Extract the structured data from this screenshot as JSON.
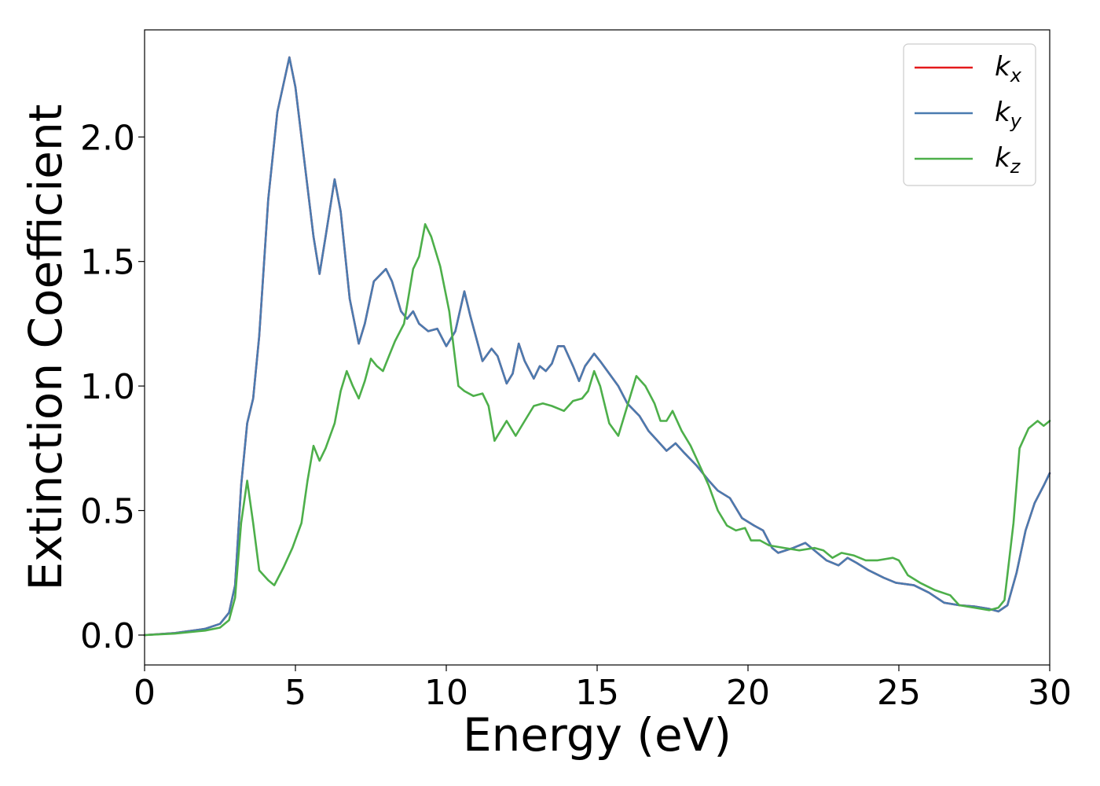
{
  "chart_data": {
    "type": "line",
    "title": "",
    "xlabel": "Energy (eV)",
    "ylabel": "Extinction Coefficient",
    "xlim": [
      0,
      30
    ],
    "ylim": [
      -0.12,
      2.43
    ],
    "xticks": [
      0,
      5,
      10,
      15,
      20,
      25,
      30
    ],
    "xtick_labels": [
      "0",
      "5",
      "10",
      "15",
      "20",
      "25",
      "30"
    ],
    "yticks": [
      0.0,
      0.5,
      1.0,
      1.5,
      2.0
    ],
    "ytick_labels": [
      "0.0",
      "0.5",
      "1.0",
      "1.5",
      "2.0"
    ],
    "grid": false,
    "legend_position": "top-right",
    "series": [
      {
        "name": "k",
        "subscript": "x",
        "color": "#e41a1c",
        "points": [
          [
            0,
            0
          ],
          [
            1,
            0.008
          ],
          [
            2,
            0.025
          ],
          [
            2.5,
            0.045
          ],
          [
            2.8,
            0.09
          ],
          [
            3,
            0.2
          ],
          [
            3.2,
            0.6
          ],
          [
            3.4,
            0.85
          ],
          [
            3.6,
            0.95
          ],
          [
            3.8,
            1.2
          ],
          [
            4.1,
            1.75
          ],
          [
            4.4,
            2.1
          ],
          [
            4.8,
            2.32
          ],
          [
            5.0,
            2.2
          ],
          [
            5.3,
            1.9
          ],
          [
            5.6,
            1.6
          ],
          [
            5.8,
            1.45
          ],
          [
            6.0,
            1.6
          ],
          [
            6.3,
            1.83
          ],
          [
            6.5,
            1.7
          ],
          [
            6.8,
            1.35
          ],
          [
            7.1,
            1.17
          ],
          [
            7.3,
            1.25
          ],
          [
            7.6,
            1.42
          ],
          [
            8.0,
            1.47
          ],
          [
            8.2,
            1.42
          ],
          [
            8.5,
            1.3
          ],
          [
            8.7,
            1.27
          ],
          [
            8.9,
            1.3
          ],
          [
            9.1,
            1.25
          ],
          [
            9.4,
            1.22
          ],
          [
            9.7,
            1.23
          ],
          [
            10.0,
            1.16
          ],
          [
            10.3,
            1.22
          ],
          [
            10.6,
            1.38
          ],
          [
            10.8,
            1.28
          ],
          [
            11.2,
            1.1
          ],
          [
            11.5,
            1.15
          ],
          [
            11.7,
            1.12
          ],
          [
            12.0,
            1.01
          ],
          [
            12.2,
            1.05
          ],
          [
            12.4,
            1.17
          ],
          [
            12.6,
            1.1
          ],
          [
            12.9,
            1.03
          ],
          [
            13.1,
            1.08
          ],
          [
            13.3,
            1.06
          ],
          [
            13.5,
            1.09
          ],
          [
            13.7,
            1.16
          ],
          [
            13.9,
            1.16
          ],
          [
            14.2,
            1.08
          ],
          [
            14.4,
            1.02
          ],
          [
            14.6,
            1.08
          ],
          [
            14.9,
            1.13
          ],
          [
            15.1,
            1.1
          ],
          [
            15.4,
            1.05
          ],
          [
            15.7,
            1.0
          ],
          [
            16.0,
            0.93
          ],
          [
            16.4,
            0.88
          ],
          [
            16.7,
            0.82
          ],
          [
            17.0,
            0.78
          ],
          [
            17.3,
            0.74
          ],
          [
            17.6,
            0.77
          ],
          [
            17.9,
            0.73
          ],
          [
            18.3,
            0.68
          ],
          [
            18.7,
            0.62
          ],
          [
            19.0,
            0.58
          ],
          [
            19.4,
            0.55
          ],
          [
            19.8,
            0.47
          ],
          [
            20.2,
            0.44
          ],
          [
            20.5,
            0.42
          ],
          [
            20.8,
            0.35
          ],
          [
            21.0,
            0.33
          ],
          [
            21.5,
            0.35
          ],
          [
            21.9,
            0.37
          ],
          [
            22.2,
            0.34
          ],
          [
            22.6,
            0.3
          ],
          [
            23.0,
            0.28
          ],
          [
            23.3,
            0.31
          ],
          [
            23.6,
            0.29
          ],
          [
            24.0,
            0.26
          ],
          [
            24.5,
            0.23
          ],
          [
            24.9,
            0.21
          ],
          [
            25.5,
            0.2
          ],
          [
            26.0,
            0.17
          ],
          [
            26.5,
            0.13
          ],
          [
            27.0,
            0.12
          ],
          [
            27.5,
            0.115
          ],
          [
            28.0,
            0.105
          ],
          [
            28.3,
            0.095
          ],
          [
            28.6,
            0.12
          ],
          [
            28.9,
            0.25
          ],
          [
            29.2,
            0.42
          ],
          [
            29.5,
            0.53
          ],
          [
            29.8,
            0.6
          ],
          [
            30,
            0.65
          ]
        ]
      },
      {
        "name": "k",
        "subscript": "y",
        "color": "#4a7bb0",
        "points": [
          [
            0,
            0
          ],
          [
            1,
            0.008
          ],
          [
            2,
            0.025
          ],
          [
            2.5,
            0.045
          ],
          [
            2.8,
            0.09
          ],
          [
            3,
            0.2
          ],
          [
            3.2,
            0.6
          ],
          [
            3.4,
            0.85
          ],
          [
            3.6,
            0.95
          ],
          [
            3.8,
            1.2
          ],
          [
            4.1,
            1.75
          ],
          [
            4.4,
            2.1
          ],
          [
            4.8,
            2.32
          ],
          [
            5.0,
            2.2
          ],
          [
            5.3,
            1.9
          ],
          [
            5.6,
            1.6
          ],
          [
            5.8,
            1.45
          ],
          [
            6.0,
            1.6
          ],
          [
            6.3,
            1.83
          ],
          [
            6.5,
            1.7
          ],
          [
            6.8,
            1.35
          ],
          [
            7.1,
            1.17
          ],
          [
            7.3,
            1.25
          ],
          [
            7.6,
            1.42
          ],
          [
            8.0,
            1.47
          ],
          [
            8.2,
            1.42
          ],
          [
            8.5,
            1.3
          ],
          [
            8.7,
            1.27
          ],
          [
            8.9,
            1.3
          ],
          [
            9.1,
            1.25
          ],
          [
            9.4,
            1.22
          ],
          [
            9.7,
            1.23
          ],
          [
            10.0,
            1.16
          ],
          [
            10.3,
            1.22
          ],
          [
            10.6,
            1.38
          ],
          [
            10.8,
            1.28
          ],
          [
            11.2,
            1.1
          ],
          [
            11.5,
            1.15
          ],
          [
            11.7,
            1.12
          ],
          [
            12.0,
            1.01
          ],
          [
            12.2,
            1.05
          ],
          [
            12.4,
            1.17
          ],
          [
            12.6,
            1.1
          ],
          [
            12.9,
            1.03
          ],
          [
            13.1,
            1.08
          ],
          [
            13.3,
            1.06
          ],
          [
            13.5,
            1.09
          ],
          [
            13.7,
            1.16
          ],
          [
            13.9,
            1.16
          ],
          [
            14.2,
            1.08
          ],
          [
            14.4,
            1.02
          ],
          [
            14.6,
            1.08
          ],
          [
            14.9,
            1.13
          ],
          [
            15.1,
            1.1
          ],
          [
            15.4,
            1.05
          ],
          [
            15.7,
            1.0
          ],
          [
            16.0,
            0.93
          ],
          [
            16.4,
            0.88
          ],
          [
            16.7,
            0.82
          ],
          [
            17.0,
            0.78
          ],
          [
            17.3,
            0.74
          ],
          [
            17.6,
            0.77
          ],
          [
            17.9,
            0.73
          ],
          [
            18.3,
            0.68
          ],
          [
            18.7,
            0.62
          ],
          [
            19.0,
            0.58
          ],
          [
            19.4,
            0.55
          ],
          [
            19.8,
            0.47
          ],
          [
            20.2,
            0.44
          ],
          [
            20.5,
            0.42
          ],
          [
            20.8,
            0.35
          ],
          [
            21.0,
            0.33
          ],
          [
            21.5,
            0.35
          ],
          [
            21.9,
            0.37
          ],
          [
            22.2,
            0.34
          ],
          [
            22.6,
            0.3
          ],
          [
            23.0,
            0.28
          ],
          [
            23.3,
            0.31
          ],
          [
            23.6,
            0.29
          ],
          [
            24.0,
            0.26
          ],
          [
            24.5,
            0.23
          ],
          [
            24.9,
            0.21
          ],
          [
            25.5,
            0.2
          ],
          [
            26.0,
            0.17
          ],
          [
            26.5,
            0.13
          ],
          [
            27.0,
            0.12
          ],
          [
            27.5,
            0.115
          ],
          [
            28.0,
            0.105
          ],
          [
            28.3,
            0.095
          ],
          [
            28.6,
            0.12
          ],
          [
            28.9,
            0.25
          ],
          [
            29.2,
            0.42
          ],
          [
            29.5,
            0.53
          ],
          [
            29.8,
            0.6
          ],
          [
            30,
            0.65
          ]
        ]
      },
      {
        "name": "k",
        "subscript": "z",
        "color": "#4daf4a",
        "points": [
          [
            0,
            0
          ],
          [
            1,
            0.006
          ],
          [
            2,
            0.018
          ],
          [
            2.5,
            0.03
          ],
          [
            2.8,
            0.06
          ],
          [
            3.0,
            0.15
          ],
          [
            3.2,
            0.45
          ],
          [
            3.4,
            0.62
          ],
          [
            3.6,
            0.45
          ],
          [
            3.8,
            0.26
          ],
          [
            4.1,
            0.22
          ],
          [
            4.3,
            0.2
          ],
          [
            4.6,
            0.27
          ],
          [
            4.9,
            0.35
          ],
          [
            5.2,
            0.45
          ],
          [
            5.4,
            0.62
          ],
          [
            5.6,
            0.76
          ],
          [
            5.8,
            0.7
          ],
          [
            6.0,
            0.75
          ],
          [
            6.3,
            0.85
          ],
          [
            6.5,
            0.98
          ],
          [
            6.7,
            1.06
          ],
          [
            6.9,
            1.0
          ],
          [
            7.1,
            0.95
          ],
          [
            7.3,
            1.02
          ],
          [
            7.5,
            1.11
          ],
          [
            7.7,
            1.08
          ],
          [
            7.9,
            1.06
          ],
          [
            8.1,
            1.12
          ],
          [
            8.3,
            1.18
          ],
          [
            8.6,
            1.25
          ],
          [
            8.9,
            1.47
          ],
          [
            9.1,
            1.52
          ],
          [
            9.3,
            1.65
          ],
          [
            9.5,
            1.6
          ],
          [
            9.8,
            1.48
          ],
          [
            10.1,
            1.3
          ],
          [
            10.4,
            1.0
          ],
          [
            10.6,
            0.98
          ],
          [
            10.9,
            0.96
          ],
          [
            11.2,
            0.97
          ],
          [
            11.4,
            0.92
          ],
          [
            11.6,
            0.78
          ],
          [
            11.8,
            0.82
          ],
          [
            12.0,
            0.86
          ],
          [
            12.3,
            0.8
          ],
          [
            12.6,
            0.86
          ],
          [
            12.9,
            0.92
          ],
          [
            13.2,
            0.93
          ],
          [
            13.5,
            0.92
          ],
          [
            13.9,
            0.9
          ],
          [
            14.2,
            0.94
          ],
          [
            14.5,
            0.95
          ],
          [
            14.7,
            0.98
          ],
          [
            14.9,
            1.06
          ],
          [
            15.1,
            1.0
          ],
          [
            15.4,
            0.85
          ],
          [
            15.7,
            0.8
          ],
          [
            16.0,
            0.92
          ],
          [
            16.3,
            1.04
          ],
          [
            16.6,
            1.0
          ],
          [
            16.9,
            0.93
          ],
          [
            17.1,
            0.86
          ],
          [
            17.3,
            0.86
          ],
          [
            17.5,
            0.9
          ],
          [
            17.8,
            0.82
          ],
          [
            18.1,
            0.76
          ],
          [
            18.4,
            0.68
          ],
          [
            18.7,
            0.6
          ],
          [
            19.0,
            0.5
          ],
          [
            19.3,
            0.44
          ],
          [
            19.6,
            0.42
          ],
          [
            19.9,
            0.43
          ],
          [
            20.1,
            0.38
          ],
          [
            20.4,
            0.38
          ],
          [
            20.7,
            0.36
          ],
          [
            21.2,
            0.35
          ],
          [
            21.7,
            0.34
          ],
          [
            22.2,
            0.35
          ],
          [
            22.5,
            0.34
          ],
          [
            22.8,
            0.31
          ],
          [
            23.1,
            0.33
          ],
          [
            23.5,
            0.32
          ],
          [
            23.9,
            0.3
          ],
          [
            24.3,
            0.3
          ],
          [
            24.8,
            0.31
          ],
          [
            25.0,
            0.3
          ],
          [
            25.3,
            0.24
          ],
          [
            25.7,
            0.21
          ],
          [
            26.2,
            0.18
          ],
          [
            26.7,
            0.16
          ],
          [
            27.0,
            0.12
          ],
          [
            27.5,
            0.11
          ],
          [
            28.0,
            0.1
          ],
          [
            28.3,
            0.11
          ],
          [
            28.5,
            0.14
          ],
          [
            28.8,
            0.45
          ],
          [
            29.0,
            0.75
          ],
          [
            29.3,
            0.83
          ],
          [
            29.6,
            0.86
          ],
          [
            29.8,
            0.84
          ],
          [
            30,
            0.86
          ]
        ]
      }
    ]
  }
}
